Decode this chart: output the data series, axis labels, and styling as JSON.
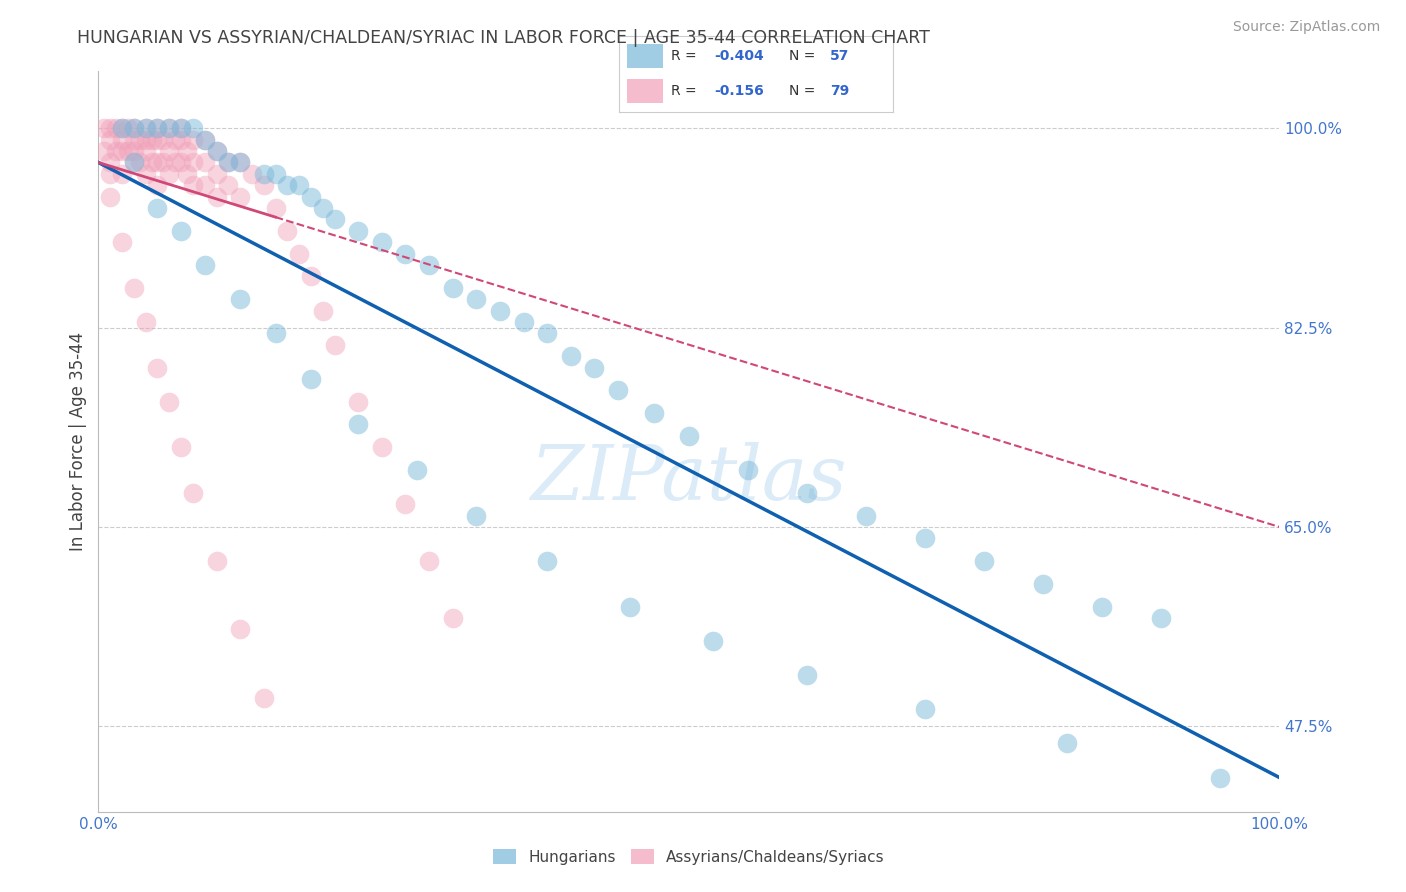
{
  "title": "HUNGARIAN VS ASSYRIAN/CHALDEAN/SYRIAC IN LABOR FORCE | AGE 35-44 CORRELATION CHART",
  "source": "Source: ZipAtlas.com",
  "ylabel": "In Labor Force | Age 35-44",
  "watermark": "ZIPatlas",
  "xmin": 0.0,
  "xmax": 100.0,
  "ymin": 40.0,
  "ymax": 105.0,
  "yticks": [
    47.5,
    65.0,
    82.5,
    100.0
  ],
  "ytick_labels": [
    "47.5%",
    "65.0%",
    "82.5%",
    "100.0%"
  ],
  "legend_v1": "-0.404",
  "legend_nv1": "57",
  "legend_v2": "-0.156",
  "legend_nv2": "79",
  "blue_color": "#7ab8d9",
  "pink_color": "#f0a0b8",
  "blue_line_color": "#1060b0",
  "pink_line_color": "#d04878",
  "grid_color": "#cccccc",
  "title_color": "#444444",
  "source_color": "#999999",
  "axis_color": "#bbbbbb",
  "tick_color": "#444444",
  "watermark_color": "#b8d8f0",
  "blue_scatter_x": [
    2,
    3,
    4,
    5,
    6,
    7,
    8,
    9,
    10,
    11,
    12,
    14,
    15,
    16,
    17,
    18,
    19,
    20,
    22,
    24,
    26,
    28,
    30,
    32,
    34,
    36,
    38,
    40,
    42,
    44,
    47,
    50,
    55,
    60,
    65,
    70,
    75,
    80,
    85,
    90,
    3,
    5,
    7,
    9,
    12,
    15,
    18,
    22,
    27,
    32,
    38,
    45,
    52,
    60,
    70,
    82,
    95
  ],
  "blue_scatter_y": [
    100,
    100,
    100,
    100,
    100,
    100,
    100,
    99,
    98,
    97,
    97,
    96,
    96,
    95,
    95,
    94,
    93,
    92,
    91,
    90,
    89,
    88,
    86,
    85,
    84,
    83,
    82,
    80,
    79,
    77,
    75,
    73,
    70,
    68,
    66,
    64,
    62,
    60,
    58,
    57,
    97,
    93,
    91,
    88,
    85,
    82,
    78,
    74,
    70,
    66,
    62,
    58,
    55,
    52,
    49,
    46,
    43
  ],
  "pink_scatter_x": [
    0.5,
    0.5,
    1,
    1,
    1,
    1,
    1.5,
    1.5,
    2,
    2,
    2,
    2,
    2.5,
    2.5,
    3,
    3,
    3,
    3,
    3.5,
    3.5,
    4,
    4,
    4,
    4,
    4.5,
    4.5,
    5,
    5,
    5,
    5,
    5.5,
    5.5,
    6,
    6,
    6,
    6.5,
    6.5,
    7,
    7,
    7,
    7.5,
    7.5,
    8,
    8,
    8,
    9,
    9,
    9,
    10,
    10,
    10,
    11,
    11,
    12,
    12,
    13,
    14,
    15,
    16,
    17,
    18,
    19,
    20,
    22,
    24,
    26,
    28,
    30,
    1,
    2,
    3,
    4,
    5,
    6,
    7,
    8,
    10,
    12,
    14
  ],
  "pink_scatter_y": [
    100,
    98,
    100,
    99,
    97,
    96,
    100,
    98,
    100,
    99,
    98,
    96,
    100,
    98,
    100,
    99,
    98,
    97,
    99,
    97,
    100,
    99,
    98,
    96,
    99,
    97,
    100,
    99,
    97,
    95,
    99,
    97,
    100,
    98,
    96,
    99,
    97,
    100,
    99,
    97,
    98,
    96,
    99,
    97,
    95,
    99,
    97,
    95,
    98,
    96,
    94,
    97,
    95,
    97,
    94,
    96,
    95,
    93,
    91,
    89,
    87,
    84,
    81,
    76,
    72,
    67,
    62,
    57,
    94,
    90,
    86,
    83,
    79,
    76,
    72,
    68,
    62,
    56,
    50
  ],
  "blue_trendline_x": [
    0,
    100
  ],
  "blue_trendline_y": [
    97,
    43
  ],
  "pink_trendline_x": [
    0,
    100
  ],
  "pink_trendline_y": [
    97,
    65
  ]
}
